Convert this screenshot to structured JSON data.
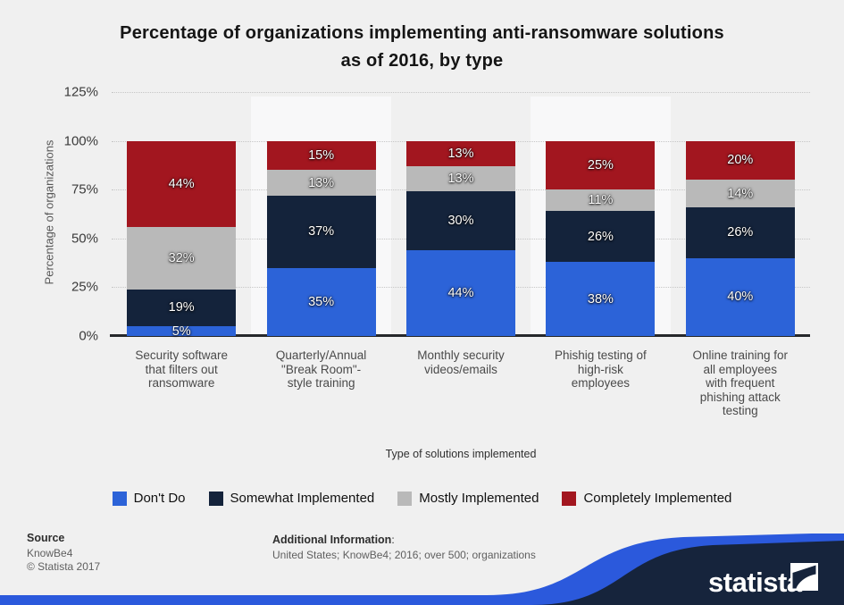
{
  "title": {
    "line1": "Percentage of organizations implementing anti-ransomware solutions",
    "line2": "as of 2016, by type"
  },
  "chart_data": {
    "type": "bar",
    "stacked": true,
    "title": "Percentage of organizations implementing anti-ransomware solutions as of 2016, by type",
    "xlabel": "Type of solutions implemented",
    "ylabel": "Percentage of organizations",
    "ylim": [
      0,
      125
    ],
    "y_ticks": [
      "125%",
      "100%",
      "75%",
      "50%",
      "25%",
      "0%"
    ],
    "grid": "horizontal-dotted",
    "legend_position": "bottom",
    "categories": [
      "Security software that filters out ransomware",
      "Quarterly/Annual \"Break Room\"-style training",
      "Monthly security videos/emails",
      "Phishig testing of high-risk employees",
      "Online training for all employees with frequent phishing attack testing"
    ],
    "category_label_lines": [
      [
        "Security software",
        "that filters out",
        "ransomware"
      ],
      [
        "Quarterly/Annual",
        "\"Break Room\"-",
        "style training"
      ],
      [
        "Monthly security",
        "videos/emails"
      ],
      [
        "Phishig testing of",
        "high-risk",
        "employees"
      ],
      [
        "Online training for",
        "all employees",
        "with frequent",
        "phishing attack",
        "testing"
      ]
    ],
    "series": [
      {
        "name": "Don't Do",
        "color": "#2c63d8",
        "values": [
          5,
          35,
          44,
          38,
          40
        ]
      },
      {
        "name": "Somewhat Implemented",
        "color": "#14233b",
        "values": [
          19,
          37,
          30,
          26,
          26
        ]
      },
      {
        "name": "Mostly Implemented",
        "color": "#b9b9b9",
        "values": [
          32,
          13,
          13,
          11,
          14
        ]
      },
      {
        "name": "Completely Implemented",
        "color": "#a2161f",
        "values": [
          44,
          15,
          13,
          25,
          20
        ]
      }
    ],
    "value_label_format": "{value}%"
  },
  "footer": {
    "source_label": "Source",
    "source_lines": [
      "KnowBe4",
      "© Statista 2017"
    ],
    "additional_label": "Additional Information",
    "additional_colon": ":",
    "additional_text": "United States; KnowBe4; 2016; over 500; organizations"
  },
  "branding": {
    "logo_text": "statista",
    "wave_navy": "#16243c",
    "wave_blue": "#2b59dc"
  }
}
